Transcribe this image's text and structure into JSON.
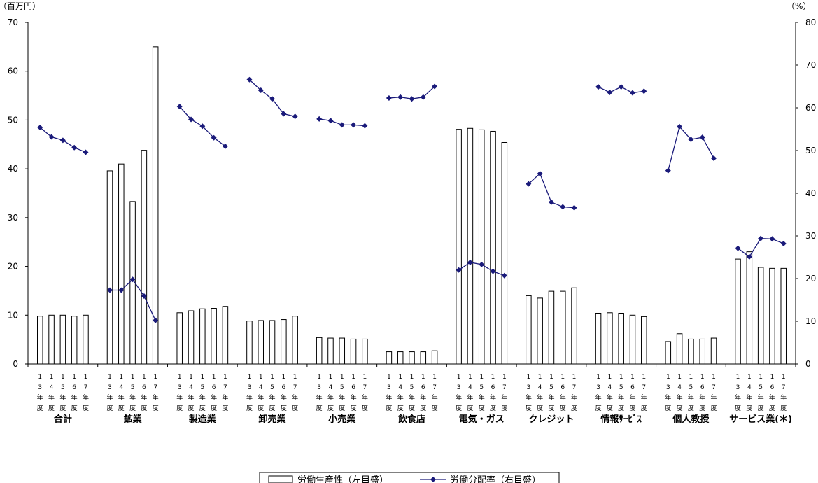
{
  "chart_data": {
    "type": "bar",
    "left_unit": "（百万円）",
    "right_unit": "（%）",
    "left_ylim": [
      0,
      70
    ],
    "left_ticks": [
      "0",
      "10",
      "20",
      "30",
      "40",
      "50",
      "60",
      "70"
    ],
    "right_ylim": [
      0,
      80
    ],
    "right_ticks": [
      "0",
      "10",
      "20",
      "30",
      "40",
      "50",
      "60",
      "70",
      "80"
    ],
    "categories": [
      "合計",
      "鉱業",
      "製造業",
      "卸売業",
      "小売業",
      "飲食店",
      "電気・ガス",
      "クレジット",
      "情報ｻｰﾋﾞｽ",
      "個人教授",
      "サービス業(＊)"
    ],
    "year_labels": [
      [
        "1",
        "3",
        "年",
        "度"
      ],
      [
        "1",
        "4",
        "年",
        "度"
      ],
      [
        "1",
        "5",
        "年",
        "度"
      ],
      [
        "1",
        "6",
        "年",
        "度"
      ],
      [
        "1",
        "7",
        "年",
        "度"
      ]
    ],
    "series": [
      {
        "name": "労働生産性（左目盛）",
        "axis": "left",
        "values": [
          [
            9.8,
            10.0,
            10.0,
            9.8,
            10.0
          ],
          [
            39.6,
            41.0,
            33.3,
            43.8,
            65.0
          ],
          [
            10.5,
            10.9,
            11.3,
            11.4,
            11.8
          ],
          [
            8.8,
            8.9,
            8.9,
            9.1,
            9.8
          ],
          [
            5.4,
            5.3,
            5.3,
            5.1,
            5.1
          ],
          [
            2.5,
            2.5,
            2.5,
            2.5,
            2.7
          ],
          [
            48.1,
            48.3,
            48.0,
            47.7,
            45.4
          ],
          [
            14.0,
            13.5,
            14.9,
            14.9,
            15.6
          ],
          [
            10.4,
            10.5,
            10.4,
            10.0,
            9.7
          ],
          [
            4.6,
            6.2,
            5.1,
            5.1,
            5.3
          ],
          [
            21.5,
            23.0,
            19.8,
            19.6,
            19.6
          ]
        ],
        "color": "#ffffff"
      },
      {
        "name": "労働分配率（右目盛）",
        "axis": "right",
        "values": [
          [
            55.4,
            53.2,
            52.4,
            50.7,
            49.6
          ],
          [
            17.3,
            17.3,
            19.8,
            15.9,
            10.2
          ],
          [
            60.3,
            57.3,
            55.7,
            53.0,
            51.0
          ],
          [
            66.6,
            64.1,
            62.1,
            58.6,
            58.0
          ],
          [
            57.4,
            57.0,
            56.0,
            56.0,
            55.8
          ],
          [
            62.3,
            62.5,
            62.1,
            62.5,
            65.0
          ],
          [
            22.0,
            23.8,
            23.3,
            21.7,
            20.7
          ],
          [
            42.2,
            44.6,
            37.9,
            36.8,
            36.6
          ],
          [
            64.9,
            63.6,
            64.9,
            63.5,
            63.9
          ],
          [
            45.3,
            55.6,
            52.6,
            53.1,
            48.2
          ],
          [
            27.1,
            25.1,
            29.4,
            29.3,
            28.2
          ]
        ],
        "color": "#1a1a7a"
      }
    ],
    "legend_position": "bottom-center",
    "grid": false
  }
}
